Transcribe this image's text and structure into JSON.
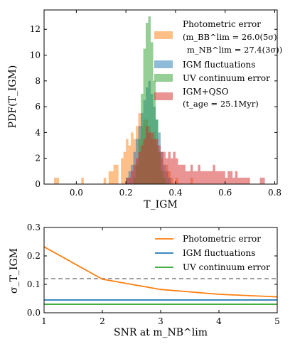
{
  "chart_data": [
    {
      "type": "histogram",
      "xlabel": "T_IGM",
      "ylabel": "PDF(T_IGM)",
      "xlim": [
        -0.13,
        0.81
      ],
      "ylim": [
        0,
        13.5
      ],
      "xticks": [
        "0.0",
        "0.2",
        "0.4",
        "0.6",
        "0.8"
      ],
      "yticks": [
        "0",
        "2",
        "4",
        "6",
        "8",
        "10",
        "12"
      ],
      "bin_width": 0.01,
      "legend_position": "top-right",
      "legend": [
        {
          "line1": "Photometric error",
          "line2": "(m_BB^lim = 26.0(5σ)",
          "line3": "m_NB^lim = 27.4(3σ))",
          "color": "#ff7f0e"
        },
        {
          "line1": "IGM fluctuations",
          "color": "#1f77b4"
        },
        {
          "line1": "UV continuum error",
          "color": "#2ca02c"
        },
        {
          "line1": "IGM+QSO",
          "line2": "(t_age = 25.1Myr)",
          "color": "#d62728"
        }
      ],
      "series": [
        {
          "name": "Photometric error",
          "color": "#ff7f0e",
          "bins": [
            [
              -0.09,
              0.5
            ],
            [
              -0.08,
              0.5
            ],
            [
              0.02,
              0.5
            ],
            [
              0.11,
              0.5
            ],
            [
              0.13,
              1.0
            ],
            [
              0.14,
              1.0
            ],
            [
              0.15,
              1.5
            ],
            [
              0.16,
              1.5
            ],
            [
              0.18,
              2.0
            ],
            [
              0.19,
              2.5
            ],
            [
              0.2,
              3.5
            ],
            [
              0.21,
              3.0
            ],
            [
              0.22,
              4.0
            ],
            [
              0.23,
              3.5
            ],
            [
              0.24,
              4.5
            ],
            [
              0.25,
              5.5
            ],
            [
              0.26,
              4.5
            ],
            [
              0.27,
              5.0
            ],
            [
              0.28,
              5.0
            ],
            [
              0.29,
              4.5
            ],
            [
              0.3,
              3.5
            ],
            [
              0.31,
              4.0
            ],
            [
              0.32,
              3.0
            ],
            [
              0.33,
              2.5
            ],
            [
              0.34,
              2.0
            ],
            [
              0.35,
              1.0
            ],
            [
              0.36,
              1.5
            ],
            [
              0.37,
              1.0
            ],
            [
              0.38,
              0.5
            ],
            [
              0.4,
              0.5
            ],
            [
              0.46,
              0.5
            ]
          ]
        },
        {
          "name": "IGM fluctuations",
          "color": "#1f77b4",
          "bins": [
            [
              0.2,
              0.5
            ],
            [
              0.21,
              1.0
            ],
            [
              0.22,
              1.5
            ],
            [
              0.23,
              2.5
            ],
            [
              0.24,
              3.5
            ],
            [
              0.25,
              4.5
            ],
            [
              0.26,
              5.5
            ],
            [
              0.27,
              6.5
            ],
            [
              0.28,
              7.5
            ],
            [
              0.29,
              8.0
            ],
            [
              0.3,
              7.0
            ],
            [
              0.31,
              6.0
            ],
            [
              0.32,
              5.0
            ],
            [
              0.33,
              4.0
            ],
            [
              0.34,
              2.5
            ],
            [
              0.35,
              1.5
            ],
            [
              0.36,
              1.0
            ],
            [
              0.37,
              0.5
            ]
          ]
        },
        {
          "name": "UV continuum error",
          "color": "#2ca02c",
          "bins": [
            [
              0.23,
              0.5
            ],
            [
              0.24,
              1.5
            ],
            [
              0.25,
              3.5
            ],
            [
              0.26,
              7.0
            ],
            [
              0.27,
              10.5
            ],
            [
              0.28,
              12.5
            ],
            [
              0.29,
              13.0
            ],
            [
              0.3,
              11.0
            ],
            [
              0.31,
              8.0
            ],
            [
              0.32,
              5.0
            ],
            [
              0.33,
              2.5
            ],
            [
              0.34,
              1.0
            ],
            [
              0.35,
              0.5
            ]
          ]
        },
        {
          "name": "IGM+QSO",
          "color": "#d62728",
          "bins": [
            [
              0.2,
              0.5
            ],
            [
              0.21,
              0.5
            ],
            [
              0.22,
              1.0
            ],
            [
              0.23,
              1.5
            ],
            [
              0.24,
              2.0
            ],
            [
              0.25,
              2.5
            ],
            [
              0.26,
              3.0
            ],
            [
              0.27,
              3.5
            ],
            [
              0.28,
              4.5
            ],
            [
              0.29,
              4.0
            ],
            [
              0.3,
              4.0
            ],
            [
              0.31,
              3.5
            ],
            [
              0.32,
              3.5
            ],
            [
              0.33,
              3.0
            ],
            [
              0.34,
              2.5
            ],
            [
              0.35,
              2.5
            ],
            [
              0.36,
              2.0
            ],
            [
              0.37,
              2.5
            ],
            [
              0.38,
              2.0
            ],
            [
              0.39,
              2.5
            ],
            [
              0.4,
              2.0
            ],
            [
              0.41,
              1.5
            ],
            [
              0.42,
              1.5
            ],
            [
              0.43,
              1.5
            ],
            [
              0.44,
              1.0
            ],
            [
              0.45,
              1.0
            ],
            [
              0.46,
              1.5
            ],
            [
              0.47,
              1.0
            ],
            [
              0.48,
              1.0
            ],
            [
              0.49,
              1.5
            ],
            [
              0.5,
              1.0
            ],
            [
              0.51,
              1.0
            ],
            [
              0.52,
              1.0
            ],
            [
              0.53,
              1.0
            ],
            [
              0.54,
              1.0
            ],
            [
              0.55,
              1.5
            ],
            [
              0.56,
              1.0
            ],
            [
              0.57,
              1.0
            ],
            [
              0.58,
              1.0
            ],
            [
              0.59,
              1.0
            ],
            [
              0.6,
              0.5
            ],
            [
              0.61,
              1.0
            ],
            [
              0.62,
              1.0
            ],
            [
              0.63,
              0.5
            ],
            [
              0.64,
              1.0
            ],
            [
              0.65,
              0.5
            ],
            [
              0.66,
              0.5
            ],
            [
              0.67,
              0.5
            ],
            [
              0.68,
              0.5
            ],
            [
              0.69,
              0.5
            ],
            [
              0.74,
              0.5
            ],
            [
              0.75,
              0.5
            ]
          ]
        }
      ]
    },
    {
      "type": "line",
      "xlabel": "SNR at m_NB^lim",
      "ylabel": "σ_T_IGM",
      "xlim": [
        1,
        5
      ],
      "ylim": [
        0,
        0.3
      ],
      "xticks": [
        "1",
        "2",
        "3",
        "4",
        "5"
      ],
      "yticks": [
        "0.0",
        "0.1",
        "0.2",
        "0.3"
      ],
      "legend_position": "top-right",
      "legend": [
        {
          "label": "Photometric error",
          "color": "#ff7f0e"
        },
        {
          "label": "IGM fluctuations",
          "color": "#1f77b4"
        },
        {
          "label": "UV continuum error",
          "color": "#2ca02c"
        }
      ],
      "series": [
        {
          "name": "Photometric error",
          "color": "#ff7f0e",
          "x": [
            1,
            2,
            3,
            4,
            5
          ],
          "y": [
            0.232,
            0.118,
            0.082,
            0.065,
            0.056
          ]
        },
        {
          "name": "IGM fluctuations",
          "color": "#1f77b4",
          "x": [
            1,
            5
          ],
          "y": [
            0.045,
            0.045
          ]
        },
        {
          "name": "UV continuum error",
          "color": "#2ca02c",
          "x": [
            1,
            5
          ],
          "y": [
            0.03,
            0.03
          ]
        }
      ],
      "reference_line": {
        "y": 0.12,
        "style": "dashed",
        "color": "#808080"
      }
    }
  ]
}
